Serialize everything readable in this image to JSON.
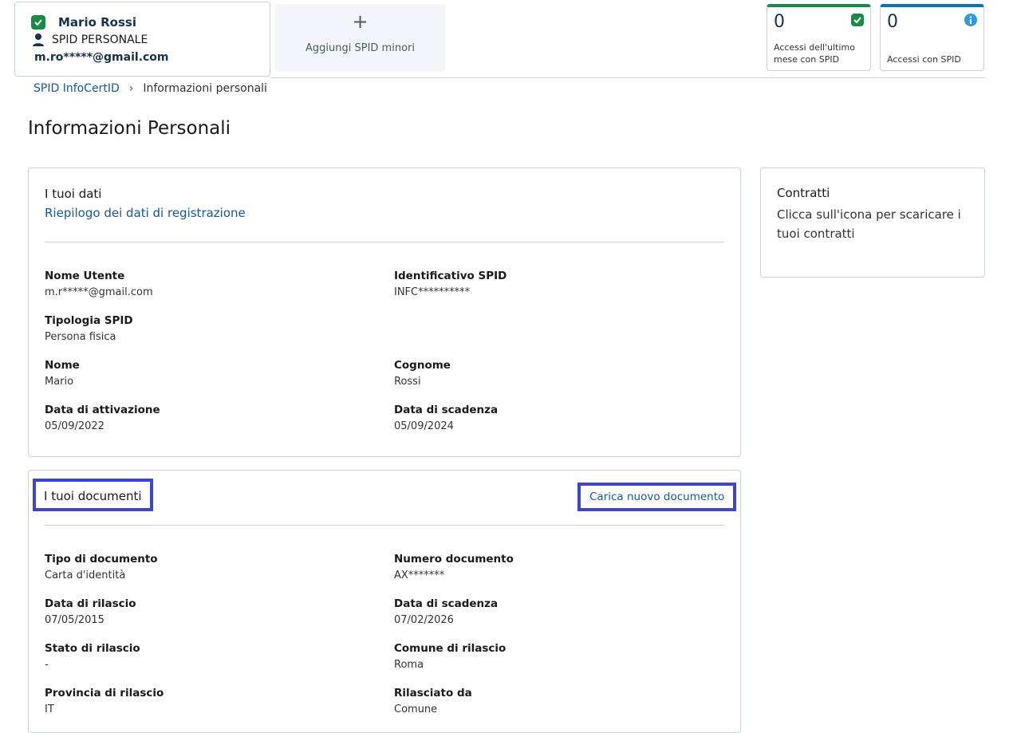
{
  "user": {
    "name": "Mario Rossi",
    "type": "SPID PERSONALE",
    "email": "m.ro*****@gmail.com"
  },
  "add_minor": {
    "icon": "plus-icon",
    "label": "Aggiungi SPID minori"
  },
  "stats": [
    {
      "value": "0",
      "label": "Accessi dell'ultimo mese con SPID",
      "icon": "check-icon",
      "color": "#1a8a46"
    },
    {
      "value": "0",
      "label": "Accessi con SPID",
      "icon": "info-icon",
      "color": "#0a73b8"
    }
  ],
  "breadcrumb": {
    "items": [
      "SPID InfoCertID",
      "Informazioni personali"
    ]
  },
  "page_title": "Informazioni Personali",
  "dati": {
    "title": "I tuoi dati",
    "subtitle": "Riepilogo dei dati di registrazione",
    "fields": [
      {
        "label": "Nome Utente",
        "value": "m.r*****@gmail.com"
      },
      {
        "label": "Identificativo SPID",
        "value": "INFC**********"
      },
      {
        "label": "Tipologia SPID",
        "value": "Persona fisica"
      },
      {
        "label": "Nome",
        "value": "Mario"
      },
      {
        "label": "Cognome",
        "value": "Rossi"
      },
      {
        "label": "Data di attivazione",
        "value": "05/09/2022"
      },
      {
        "label": "Data di scadenza",
        "value": "05/09/2024"
      }
    ]
  },
  "contratti": {
    "title": "Contratti",
    "subtitle": "Clicca sull'icona per scaricare i tuoi contratti"
  },
  "documenti": {
    "title": "I tuoi documenti",
    "upload_label": "Carica nuovo documento",
    "fields": [
      {
        "label": "Tipo di documento",
        "value": "Carta d'identità"
      },
      {
        "label": "Numero documento",
        "value": "AX*******"
      },
      {
        "label": "Data di rilascio",
        "value": "07/05/2015"
      },
      {
        "label": "Data di scadenza",
        "value": "07/02/2026"
      },
      {
        "label": "Stato di rilascio",
        "value": "-"
      },
      {
        "label": "Comune di rilascio",
        "value": "Roma"
      },
      {
        "label": "Provincia di rilascio",
        "value": "IT"
      },
      {
        "label": "Rilasciato da",
        "value": "Comune"
      }
    ]
  }
}
